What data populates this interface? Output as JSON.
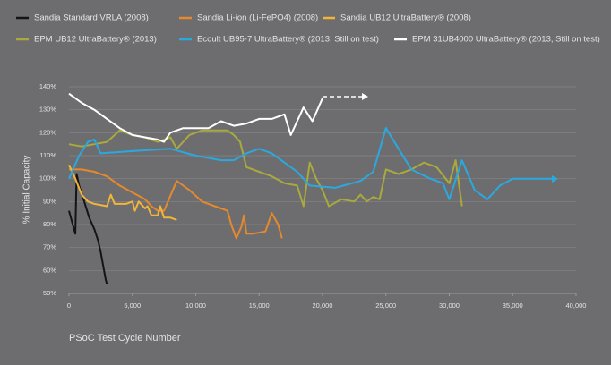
{
  "chart_data": {
    "type": "line",
    "y_label": "% Initial Capacity",
    "x_label": "PSoC Test Cycle Number",
    "xlim": [
      0,
      40000
    ],
    "ylim": [
      50,
      140
    ],
    "grid": true,
    "xticks": [
      0,
      {
        "value": 5000,
        "label": "5,000"
      },
      {
        "value": 10000,
        "label": "10,000"
      },
      {
        "value": 15000,
        "label": "15,000"
      },
      {
        "value": 20000,
        "label": "20,000"
      },
      {
        "value": 25000,
        "label": "25,000"
      },
      {
        "value": 30000,
        "label": "30,000"
      },
      {
        "value": 35000,
        "label": "35,000"
      },
      {
        "value": 40000,
        "label": "40,000"
      }
    ],
    "yticks": [
      {
        "value": 50,
        "label": "50%"
      },
      {
        "value": 60,
        "label": "60%"
      },
      {
        "value": 70,
        "label": "70%"
      },
      {
        "value": 80,
        "label": "80%"
      },
      {
        "value": 90,
        "label": "90%"
      },
      {
        "value": 100,
        "label": "100%"
      },
      {
        "value": 110,
        "label": "110%"
      },
      {
        "value": 120,
        "label": "120%"
      },
      {
        "value": 130,
        "label": "130%"
      },
      {
        "value": 140,
        "label": "140%"
      }
    ],
    "series": [
      {
        "name": "Sandia Standard VRLA (2008)",
        "color": "#141414",
        "x": [
          0,
          300,
          500,
          600,
          800,
          1200,
          1600,
          2000,
          2300,
          2500,
          2700,
          2900,
          3000
        ],
        "values": [
          86,
          80,
          76,
          102,
          97,
          90,
          83,
          78,
          73,
          68,
          62,
          56,
          54
        ]
      },
      {
        "name": "Sandia Li-ion (Li-FePO4) (2008)",
        "color": "#e5892c",
        "x": [
          0,
          1000,
          2000,
          3000,
          4000,
          5000,
          6000,
          6500,
          7000,
          7500,
          8500,
          9500,
          10500,
          11500,
          12000,
          12500,
          12800,
          13200,
          13600,
          13800,
          14000,
          14500,
          15500,
          16000,
          16500,
          16800
        ],
        "values": [
          104,
          104,
          103,
          101,
          97,
          94,
          91,
          88,
          86,
          86,
          99,
          95,
          90,
          88,
          87,
          86,
          80,
          74,
          79,
          84,
          76,
          76,
          77,
          85,
          80,
          74
        ]
      },
      {
        "name": "Sandia UB12 UltraBattery® (2008)",
        "color": "#f2b53a",
        "x": [
          0,
          500,
          1000,
          1500,
          2000,
          3000,
          3300,
          3600,
          4500,
          5000,
          5200,
          5500,
          6000,
          6200,
          6500,
          7000,
          7200,
          7500,
          8000,
          8500
        ],
        "values": [
          106,
          100,
          93,
          90,
          89,
          88,
          93,
          89,
          89,
          90,
          86,
          90,
          87,
          88,
          84,
          84,
          88,
          83,
          83,
          82
        ]
      },
      {
        "name": "EPM UB12 UltraBattery® (2013)",
        "color": "#a9a93e",
        "x": [
          0,
          1000,
          2000,
          3000,
          4000,
          5000,
          6000,
          7000,
          8000,
          8500,
          9500,
          10500,
          11500,
          12500,
          13000,
          13500,
          14000,
          15000,
          16000,
          17000,
          18000,
          18500,
          19000,
          19500,
          20000,
          20500,
          21500,
          22500,
          23000,
          23500,
          24000,
          24500,
          25000,
          26000,
          27000,
          28000,
          29000,
          30000,
          30500,
          31000
        ],
        "values": [
          115,
          114,
          115,
          116,
          121,
          119,
          118,
          116,
          118,
          113,
          119,
          121,
          121,
          121,
          119,
          116,
          105,
          103,
          101,
          98,
          97,
          88,
          107,
          100,
          95,
          88,
          91,
          90,
          93,
          90,
          92,
          91,
          104,
          102,
          104,
          107,
          105,
          98,
          108,
          88
        ]
      },
      {
        "name": "Ecoult UB95-7 UltraBattery® (2013, Still on test)",
        "color": "#2aa9e0",
        "x": [
          0,
          800,
          1500,
          2000,
          2500,
          5000,
          8000,
          10000,
          12000,
          13000,
          14000,
          15000,
          16000,
          17000,
          18000,
          19000,
          21000,
          23000,
          24000,
          25000,
          26000,
          27000,
          28500,
          29000,
          29500,
          30000,
          31000,
          32000,
          33000,
          34000,
          35000,
          38500
        ],
        "values": [
          100,
          110,
          116,
          117,
          111,
          112,
          113,
          110,
          108,
          108,
          111,
          113,
          111,
          107,
          103,
          97,
          96,
          99,
          103,
          122,
          113,
          104,
          100,
          99,
          98,
          91,
          108,
          95,
          91,
          97,
          100,
          100
        ]
      },
      {
        "name": "EPM 31UB4000 UltraBattery® (2013, Still on test)",
        "color": "#ffffff",
        "x": [
          0,
          1000,
          2000,
          3000,
          4000,
          5000,
          6000,
          7000,
          7500,
          8000,
          9000,
          10000,
          11000,
          12000,
          13000,
          14000,
          15000,
          16000,
          17000,
          17500,
          18000,
          18500,
          19200,
          20000
        ],
        "values": [
          137,
          133,
          130,
          126,
          122,
          119,
          118,
          117,
          116,
          120,
          122,
          122,
          122,
          125,
          123,
          124,
          126,
          126,
          128,
          119,
          125,
          131,
          125,
          135
        ]
      }
    ]
  }
}
